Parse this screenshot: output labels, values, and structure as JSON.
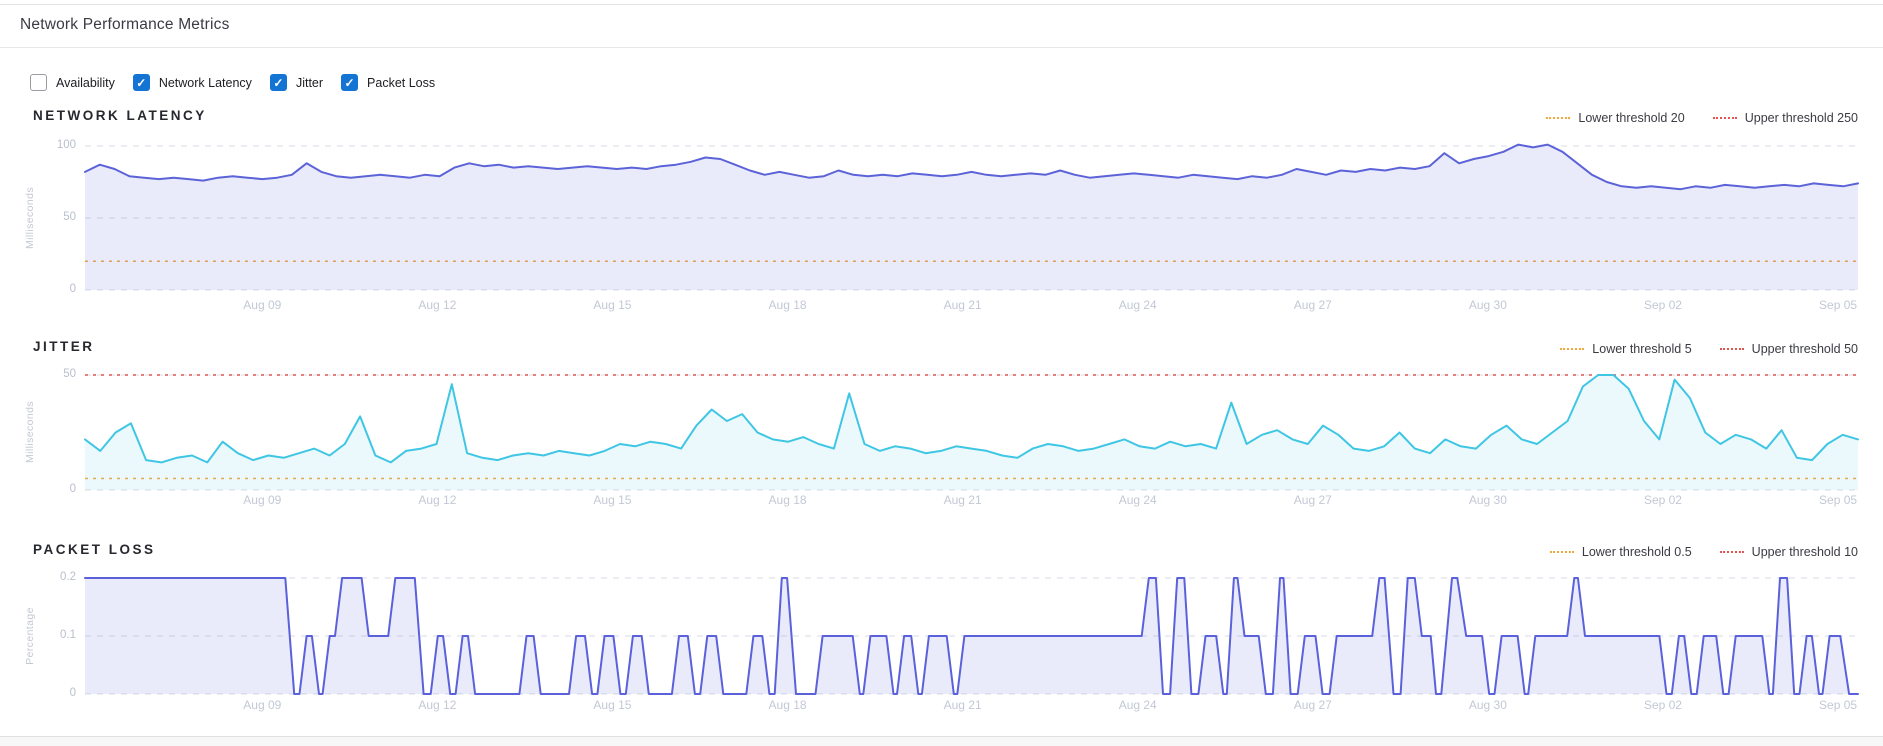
{
  "header": {
    "title": "Network Performance Metrics"
  },
  "filters": {
    "items": [
      {
        "label": "Availability",
        "checked": false
      },
      {
        "label": "Network Latency",
        "checked": true
      },
      {
        "label": "Jitter",
        "checked": true
      },
      {
        "label": "Packet Loss",
        "checked": true
      }
    ],
    "checked_color": "#1374d4"
  },
  "chart_data": [
    {
      "id": "network-latency",
      "type": "area",
      "title": "NETWORK LATENCY",
      "ylabel": "Milliseconds",
      "xlabel": "",
      "y_min": 0,
      "y_max": 100,
      "y_ticks": [
        {
          "value": 100,
          "label": "100"
        },
        {
          "value": 50,
          "label": "50"
        },
        {
          "value": 0,
          "label": "0"
        }
      ],
      "grid": "horizontal-dashed",
      "legend_position": "top-right",
      "thresholds": {
        "lower": {
          "label": "Lower threshold 20",
          "value": 20,
          "color": "#f5a83d"
        },
        "upper": {
          "label": "Upper threshold 250",
          "value": 250,
          "color": "#e2544e"
        }
      },
      "x_labels": [
        "Aug 09",
        "Aug 12",
        "Aug 15",
        "Aug 18",
        "Aug 21",
        "Aug 24",
        "Aug 27",
        "Aug 30",
        "Sep 02",
        "Sep 05"
      ],
      "series": {
        "name": "Network Latency",
        "color": "#5c63d8",
        "fill": "rgba(92,99,216,0.13)",
        "values": [
          82,
          87,
          84,
          79,
          78,
          77,
          78,
          77,
          76,
          78,
          79,
          78,
          77,
          78,
          80,
          88,
          82,
          79,
          78,
          79,
          80,
          79,
          78,
          80,
          79,
          85,
          88,
          86,
          87,
          85,
          86,
          85,
          84,
          85,
          86,
          85,
          84,
          85,
          84,
          86,
          87,
          89,
          92,
          91,
          87,
          83,
          80,
          82,
          80,
          78,
          79,
          83,
          80,
          79,
          80,
          79,
          81,
          80,
          79,
          80,
          82,
          80,
          79,
          80,
          81,
          80,
          83,
          80,
          78,
          79,
          80,
          81,
          80,
          79,
          78,
          80,
          79,
          78,
          77,
          79,
          78,
          80,
          84,
          82,
          80,
          83,
          82,
          84,
          83,
          85,
          84,
          86,
          95,
          88,
          91,
          93,
          96,
          101,
          99,
          101,
          96,
          88,
          80,
          75,
          72,
          71,
          72,
          71,
          70,
          72,
          71,
          73,
          72,
          71,
          72,
          73,
          72,
          74,
          73,
          72,
          74
        ]
      }
    },
    {
      "id": "jitter",
      "type": "area",
      "title": "JITTER",
      "ylabel": "Milliseconds",
      "xlabel": "",
      "y_min": 0,
      "y_max": 50,
      "y_ticks": [
        {
          "value": 50,
          "label": "50"
        },
        {
          "value": 0,
          "label": "0"
        }
      ],
      "grid": "horizontal-dashed",
      "legend_position": "top-right",
      "thresholds": {
        "lower": {
          "label": "Lower threshold 5",
          "value": 5,
          "color": "#f5a83d"
        },
        "upper": {
          "label": "Upper threshold 50",
          "value": 50,
          "color": "#e2544e"
        }
      },
      "x_labels": [
        "Aug 09",
        "Aug 12",
        "Aug 15",
        "Aug 18",
        "Aug 21",
        "Aug 24",
        "Aug 27",
        "Aug 30",
        "Sep 02",
        "Sep 05"
      ],
      "series": {
        "name": "Jitter",
        "color": "#3fc6e4",
        "fill": "rgba(63,198,228,0.10)",
        "values": [
          22,
          17,
          25,
          29,
          13,
          12,
          14,
          15,
          12,
          21,
          16,
          13,
          15,
          14,
          16,
          18,
          15,
          20,
          32,
          15,
          12,
          17,
          18,
          20,
          46,
          16,
          14,
          13,
          15,
          16,
          15,
          17,
          16,
          15,
          17,
          20,
          19,
          21,
          20,
          18,
          28,
          35,
          30,
          33,
          25,
          22,
          21,
          23,
          20,
          18,
          42,
          20,
          17,
          19,
          18,
          16,
          17,
          19,
          18,
          17,
          15,
          14,
          18,
          20,
          19,
          17,
          18,
          20,
          22,
          19,
          18,
          21,
          19,
          20,
          18,
          38,
          20,
          24,
          26,
          22,
          20,
          28,
          24,
          18,
          17,
          19,
          25,
          18,
          16,
          22,
          19,
          18,
          24,
          28,
          22,
          20,
          25,
          30,
          45,
          50,
          50,
          44,
          30,
          22,
          48,
          40,
          25,
          20,
          24,
          22,
          18,
          26,
          14,
          13,
          20,
          24,
          22
        ]
      }
    },
    {
      "id": "packet-loss",
      "type": "area",
      "title": "PACKET LOSS",
      "ylabel": "Percentage",
      "xlabel": "",
      "y_min": 0,
      "y_max": 0.2,
      "y_ticks": [
        {
          "value": 0.2,
          "label": "0.2"
        },
        {
          "value": 0.1,
          "label": "0.1"
        },
        {
          "value": 0,
          "label": "0"
        }
      ],
      "grid": "horizontal-dashed",
      "legend_position": "top-right",
      "thresholds": {
        "lower": {
          "label": "Lower threshold 0.5",
          "value": 0.5,
          "color": "#f5a83d"
        },
        "upper": {
          "label": "Upper threshold 10",
          "value": 10,
          "color": "#e2544e"
        }
      },
      "x_labels": [
        "Aug 09",
        "Aug 12",
        "Aug 15",
        "Aug 18",
        "Aug 21",
        "Aug 24",
        "Aug 27",
        "Aug 30",
        "Sep 02",
        "Sep 05"
      ],
      "series": {
        "name": "Packet Loss",
        "color": "#5a61da",
        "fill": "rgba(90,97,218,0.13)",
        "points": [
          [
            0,
            0.2
          ],
          [
            11.3,
            0.2
          ],
          [
            11.8,
            0
          ],
          [
            12.1,
            0
          ],
          [
            12.5,
            0.1
          ],
          [
            12.8,
            0.1
          ],
          [
            13.2,
            0
          ],
          [
            13.4,
            0
          ],
          [
            13.8,
            0.1
          ],
          [
            14.1,
            0.1
          ],
          [
            14.5,
            0.2
          ],
          [
            15.6,
            0.2
          ],
          [
            16,
            0.1
          ],
          [
            17.1,
            0.1
          ],
          [
            17.5,
            0.2
          ],
          [
            18.6,
            0.2
          ],
          [
            19.1,
            0
          ],
          [
            19.5,
            0
          ],
          [
            19.9,
            0.1
          ],
          [
            20.2,
            0.1
          ],
          [
            20.6,
            0
          ],
          [
            20.9,
            0
          ],
          [
            21.3,
            0.1
          ],
          [
            21.6,
            0.1
          ],
          [
            22,
            0
          ],
          [
            24.5,
            0
          ],
          [
            24.9,
            0.1
          ],
          [
            25.3,
            0.1
          ],
          [
            25.7,
            0
          ],
          [
            27.3,
            0
          ],
          [
            27.7,
            0.1
          ],
          [
            28.2,
            0.1
          ],
          [
            28.6,
            0
          ],
          [
            28.9,
            0
          ],
          [
            29.3,
            0.1
          ],
          [
            29.8,
            0.1
          ],
          [
            30.2,
            0
          ],
          [
            30.5,
            0
          ],
          [
            30.9,
            0.1
          ],
          [
            31.4,
            0.1
          ],
          [
            31.8,
            0
          ],
          [
            33.1,
            0
          ],
          [
            33.5,
            0.1
          ],
          [
            34,
            0.1
          ],
          [
            34.4,
            0
          ],
          [
            34.7,
            0
          ],
          [
            35.1,
            0.1
          ],
          [
            35.6,
            0.1
          ],
          [
            36,
            0
          ],
          [
            37.3,
            0
          ],
          [
            37.7,
            0.1
          ],
          [
            38.2,
            0.1
          ],
          [
            38.6,
            0
          ],
          [
            38.9,
            0
          ],
          [
            39.3,
            0.2
          ],
          [
            39.6,
            0.2
          ],
          [
            40.1,
            0
          ],
          [
            41.2,
            0
          ],
          [
            41.6,
            0.1
          ],
          [
            43.3,
            0.1
          ],
          [
            43.7,
            0
          ],
          [
            43.9,
            0
          ],
          [
            44.3,
            0.1
          ],
          [
            45.2,
            0.1
          ],
          [
            45.6,
            0
          ],
          [
            45.8,
            0
          ],
          [
            46.2,
            0.1
          ],
          [
            46.6,
            0.1
          ],
          [
            47,
            0
          ],
          [
            47.2,
            0
          ],
          [
            47.6,
            0.1
          ],
          [
            48.6,
            0.1
          ],
          [
            49,
            0
          ],
          [
            49.2,
            0
          ],
          [
            49.6,
            0.1
          ],
          [
            59.6,
            0.1
          ],
          [
            60,
            0.2
          ],
          [
            60.4,
            0.2
          ],
          [
            60.8,
            0
          ],
          [
            61.2,
            0
          ],
          [
            61.6,
            0.2
          ],
          [
            62,
            0.2
          ],
          [
            62.4,
            0
          ],
          [
            62.8,
            0
          ],
          [
            63.2,
            0.1
          ],
          [
            63.8,
            0.1
          ],
          [
            64.2,
            0
          ],
          [
            64.4,
            0
          ],
          [
            64.8,
            0.2
          ],
          [
            65,
            0.2
          ],
          [
            65.4,
            0.1
          ],
          [
            66.2,
            0.1
          ],
          [
            66.6,
            0
          ],
          [
            67,
            0
          ],
          [
            67.4,
            0.2
          ],
          [
            67.6,
            0.2
          ],
          [
            68,
            0
          ],
          [
            68.4,
            0
          ],
          [
            68.8,
            0.1
          ],
          [
            69.4,
            0.1
          ],
          [
            69.8,
            0
          ],
          [
            70.2,
            0
          ],
          [
            70.6,
            0.1
          ],
          [
            72.6,
            0.1
          ],
          [
            73,
            0.2
          ],
          [
            73.3,
            0.2
          ],
          [
            73.8,
            0
          ],
          [
            74.2,
            0
          ],
          [
            74.6,
            0.2
          ],
          [
            75,
            0.2
          ],
          [
            75.4,
            0.1
          ],
          [
            75.9,
            0.1
          ],
          [
            76.2,
            0
          ],
          [
            76.5,
            0
          ],
          [
            77.1,
            0.2
          ],
          [
            77.4,
            0.2
          ],
          [
            77.9,
            0.1
          ],
          [
            78.8,
            0.1
          ],
          [
            79.2,
            0
          ],
          [
            79.5,
            0
          ],
          [
            79.9,
            0.1
          ],
          [
            80.8,
            0.1
          ],
          [
            81.2,
            0
          ],
          [
            81.4,
            0
          ],
          [
            81.8,
            0.1
          ],
          [
            83.6,
            0.1
          ],
          [
            84,
            0.2
          ],
          [
            84.2,
            0.2
          ],
          [
            84.6,
            0.1
          ],
          [
            88.8,
            0.1
          ],
          [
            89.2,
            0
          ],
          [
            89.5,
            0
          ],
          [
            89.9,
            0.1
          ],
          [
            90.2,
            0.1
          ],
          [
            90.6,
            0
          ],
          [
            90.9,
            0
          ],
          [
            91.3,
            0.1
          ],
          [
            92,
            0.1
          ],
          [
            92.4,
            0
          ],
          [
            92.7,
            0
          ],
          [
            93.1,
            0.1
          ],
          [
            94.6,
            0.1
          ],
          [
            95,
            0
          ],
          [
            95.2,
            0
          ],
          [
            95.6,
            0.2
          ],
          [
            96,
            0.2
          ],
          [
            96.4,
            0
          ],
          [
            96.7,
            0
          ],
          [
            97.1,
            0.1
          ],
          [
            97.4,
            0.1
          ],
          [
            97.8,
            0
          ],
          [
            98,
            0
          ],
          [
            98.4,
            0.1
          ],
          [
            99,
            0.1
          ],
          [
            99.5,
            0
          ],
          [
            100,
            0
          ]
        ]
      }
    }
  ],
  "axis_colors": {
    "grid": "#d8dbe4",
    "tick_text": "#b9bfcc",
    "x_label_text": "#c2c8d5"
  }
}
